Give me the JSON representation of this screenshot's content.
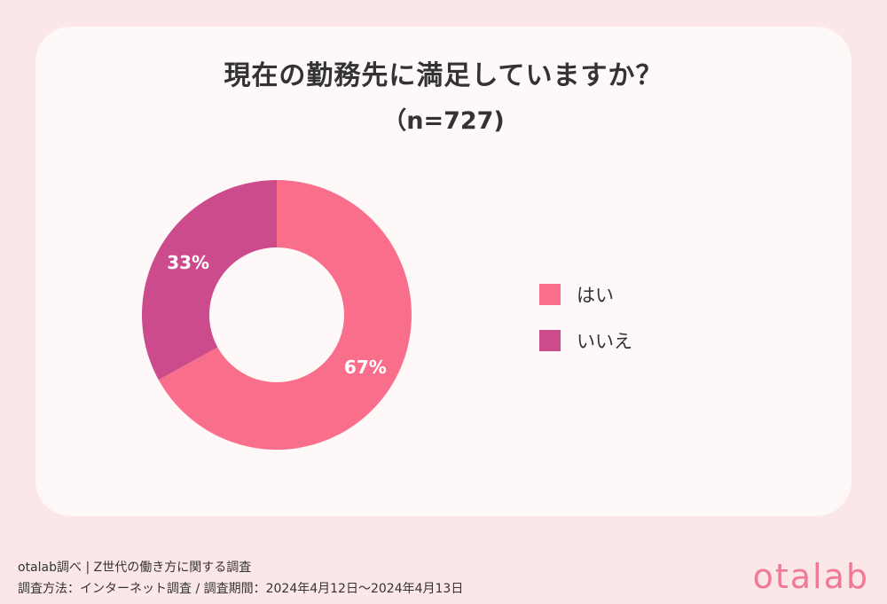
{
  "chart_data": {
    "type": "pie",
    "title": "現在の勤務先に満足していますか？",
    "subtitle": "（n=727)",
    "categories": [
      "はい",
      "いいえ"
    ],
    "values": [
      67,
      33
    ],
    "value_labels": [
      "67%",
      "33%"
    ],
    "colors": [
      "#f96f8b",
      "#cc4b8c"
    ],
    "legend_position": "right"
  },
  "footer": {
    "line1": "otalab調べ | Z世代の働き方に関する調査",
    "line2": "調査方法：インターネット調査 / 調査期間：2024年4月12日〜2024年4月13日"
  },
  "brand": {
    "logo_text": "otalab",
    "logo_color": "#f07a92"
  }
}
